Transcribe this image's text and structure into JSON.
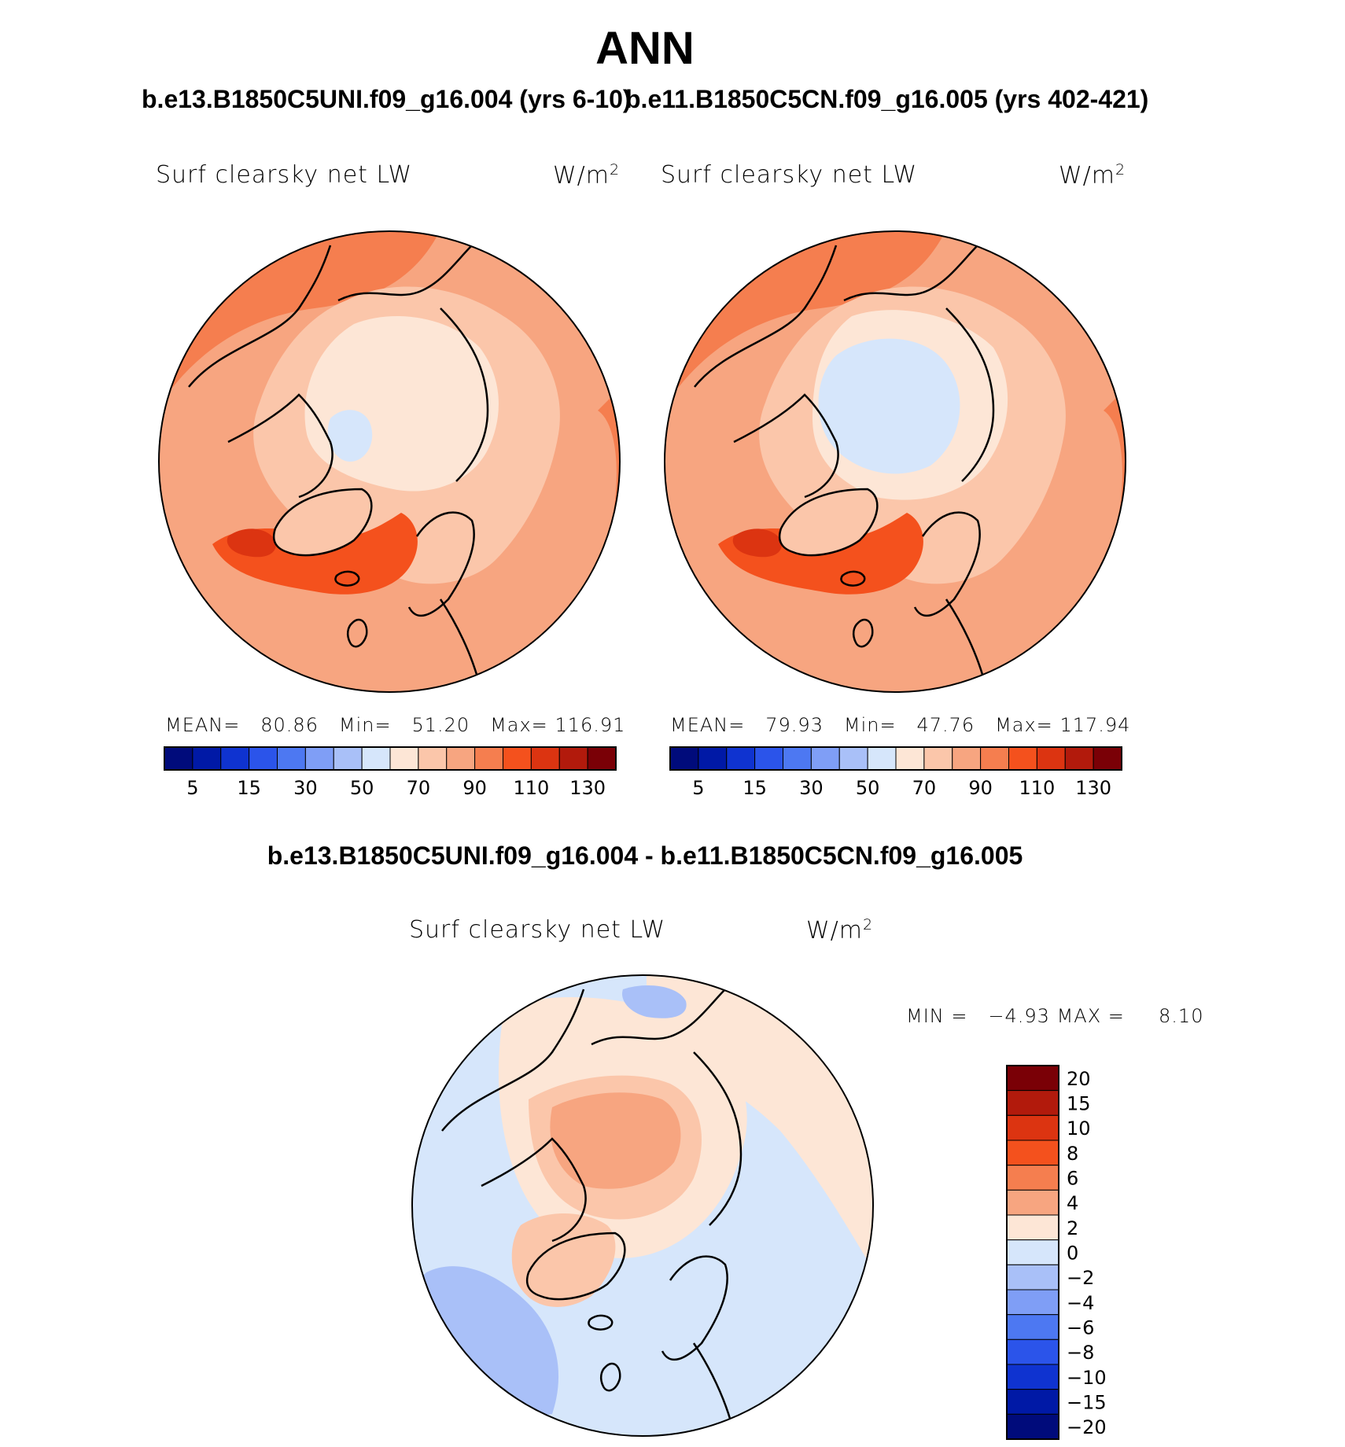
{
  "title": "ANN",
  "panels": [
    {
      "case_title": "b.e13.B1850C5UNI.f09_g16.004 (yrs 6-10)",
      "variable": "Surf clearsky net LW",
      "units": "W/m",
      "units_sup": "2",
      "stats": {
        "mean_label": "MEAN=",
        "mean": "80.86",
        "min_label": "Min=",
        "min": "51.20",
        "max_label": "Max=",
        "max": "116.91"
      }
    },
    {
      "case_title": "b.e11.B1850C5CN.f09_g16.005 (yrs 402-421)",
      "variable": "Surf clearsky net LW",
      "units": "W/m",
      "units_sup": "2",
      "stats": {
        "mean_label": "MEAN=",
        "mean": "79.93",
        "min_label": "Min=",
        "min": "47.76",
        "max_label": "Max=",
        "max": "117.94"
      }
    }
  ],
  "difference": {
    "title": "b.e13.B1850C5UNI.f09_g16.004 - b.e11.B1850C5CN.f09_g16.005",
    "variable": "Surf clearsky net LW",
    "units": "W/m",
    "units_sup": "2",
    "stats": {
      "min_label": "MIN =",
      "min": "−4.93",
      "max_label": "MAX =",
      "max": "8.10"
    }
  },
  "colorbar_main": {
    "colors": [
      "#000b7b",
      "#0019a6",
      "#0f33d0",
      "#2b54ea",
      "#4d78f2",
      "#7f9ef6",
      "#a9c0f8",
      "#d6e6fb",
      "#fde6d6",
      "#fbc6aa",
      "#f7a580",
      "#f57e4f",
      "#f4511d",
      "#dc3411",
      "#b21a0c",
      "#7a0006"
    ],
    "tick_labels": [
      "5",
      "15",
      "30",
      "50",
      "70",
      "90",
      "110",
      "130"
    ]
  },
  "colorbar_diff": {
    "colors": [
      "#7a0006",
      "#b21a0c",
      "#dc3411",
      "#f4511d",
      "#f57e4f",
      "#f7a580",
      "#fde6d6",
      "#d6e6fb",
      "#a9c0f8",
      "#7f9ef6",
      "#4d78f2",
      "#2b54ea",
      "#0f33d0",
      "#0019a6",
      "#000b7b"
    ],
    "tick_labels": [
      "20",
      "15",
      "10",
      "8",
      "6",
      "4",
      "2",
      "0",
      "−2",
      "−4",
      "−6",
      "−8",
      "−10",
      "−15",
      "−20"
    ]
  },
  "map_palette": {
    "ocean_outer": "#f7a580",
    "dark_band": "#f57e4f",
    "hot_spot": "#f4511d",
    "hotter_spot": "#dc3411",
    "hottest_spot": "#b21a0c",
    "land_light": "#fbc6aa",
    "arctic_pale": "#fde6d6",
    "arctic_blue": "#d6e6fb",
    "diff_pos_small": "#fde6d6",
    "diff_pos_mid": "#fbc6aa",
    "diff_pos_high": "#f7a580",
    "diff_neg_small": "#d6e6fb",
    "diff_neg_mid": "#a9c0f8"
  }
}
